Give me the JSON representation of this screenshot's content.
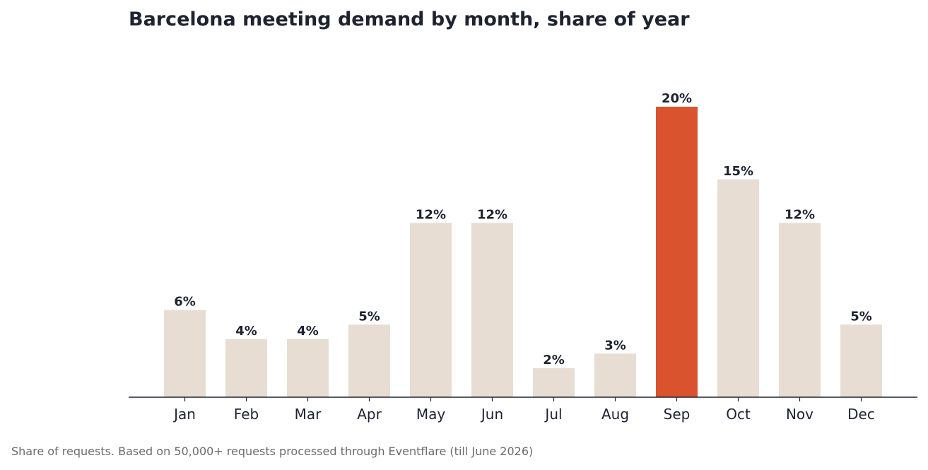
{
  "chart_data": {
    "type": "bar",
    "title": "Barcelona meeting demand by month, share of year",
    "categories": [
      "Jan",
      "Feb",
      "Mar",
      "Apr",
      "May",
      "Jun",
      "Jul",
      "Aug",
      "Sep",
      "Oct",
      "Nov",
      "Dec"
    ],
    "values": [
      6,
      4,
      4,
      5,
      12,
      12,
      2,
      3,
      20,
      15,
      12,
      5
    ],
    "value_labels": [
      "6%",
      "4%",
      "4%",
      "5%",
      "12%",
      "12%",
      "2%",
      "3%",
      "20%",
      "15%",
      "12%",
      "5%"
    ],
    "unit": "%",
    "highlight_category": "Sep",
    "ylim": [
      0,
      20
    ],
    "grid": false,
    "xlabel": "",
    "ylabel": "",
    "colors": {
      "bar": "#e7ddd3",
      "highlight": "#d9532e",
      "axis": "#1f2330",
      "text": "#1f2330",
      "footnote": "#6b6b6b"
    }
  },
  "footnote": "Share of requests. Based on 50,000+ requests processed through Eventflare (till June 2026)"
}
